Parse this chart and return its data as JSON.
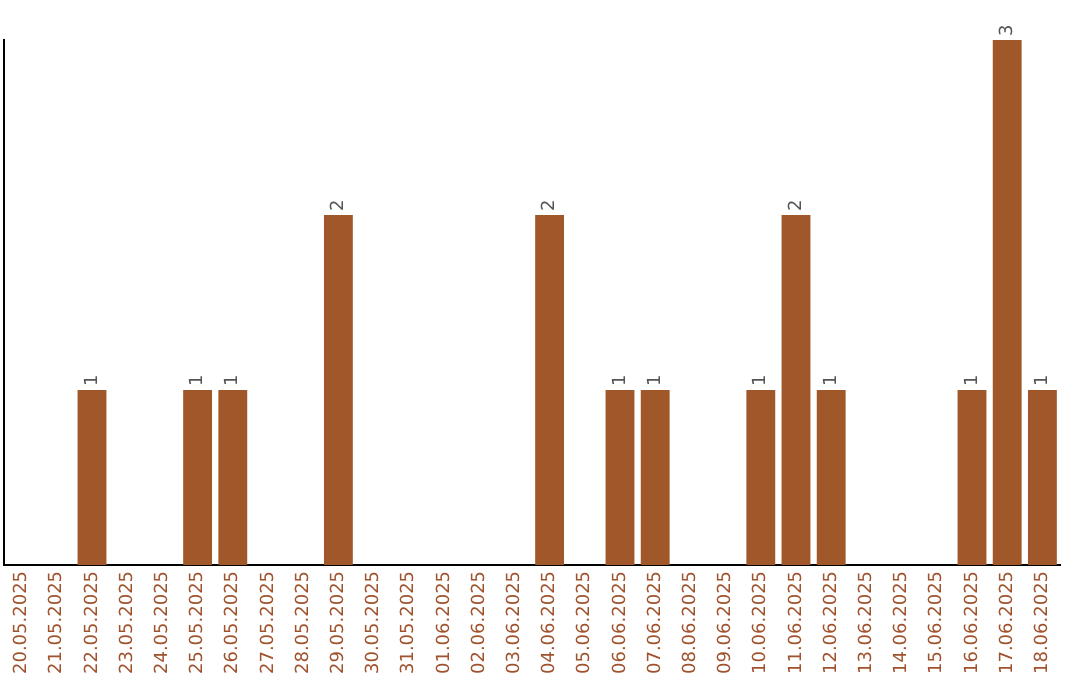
{
  "chart_data": {
    "type": "bar",
    "categories": [
      "20.05.2025",
      "21.05.2025",
      "22.05.2025",
      "23.05.2025",
      "24.05.2025",
      "25.05.2025",
      "26.05.2025",
      "27.05.2025",
      "28.05.2025",
      "29.05.2025",
      "30.05.2025",
      "31.05.2025",
      "01.06.2025",
      "02.06.2025",
      "03.06.2025",
      "04.06.2025",
      "05.06.2025",
      "06.06.2025",
      "07.06.2025",
      "08.06.2025",
      "09.06.2025",
      "10.06.2025",
      "11.06.2025",
      "12.06.2025",
      "13.06.2025",
      "14.06.2025",
      "15.06.2025",
      "16.06.2025",
      "17.06.2025",
      "18.06.2025"
    ],
    "values": [
      0,
      0,
      1,
      0,
      0,
      1,
      1,
      0,
      0,
      2,
      0,
      0,
      0,
      0,
      0,
      2,
      0,
      1,
      1,
      0,
      0,
      1,
      2,
      1,
      0,
      0,
      0,
      1,
      3,
      1
    ],
    "value_labels": [
      null,
      null,
      "1",
      null,
      null,
      "1",
      "1",
      null,
      null,
      "2",
      null,
      null,
      null,
      null,
      null,
      "2",
      null,
      "1",
      "1",
      null,
      null,
      "1",
      "2",
      "1",
      null,
      null,
      null,
      "1",
      "3",
      "1"
    ],
    "color": "#a0582a",
    "tick_labels": "x",
    "grid": false,
    "legend": false
  }
}
